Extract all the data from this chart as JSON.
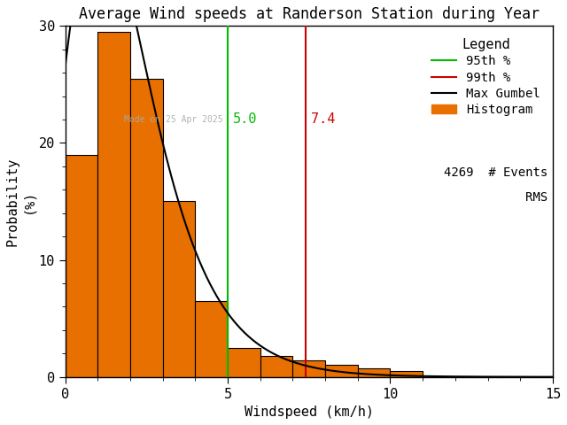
{
  "title": "Average Wind speeds at Randerson Station during Year",
  "xlabel": "Windspeed (km/h)",
  "ylabel": "Probability\n(%)",
  "xlim": [
    0,
    15
  ],
  "ylim": [
    0,
    30
  ],
  "xticks": [
    0,
    5,
    10,
    15
  ],
  "yticks": [
    0,
    10,
    20,
    30
  ],
  "bar_edges": [
    0,
    1,
    2,
    3,
    4,
    5,
    6,
    7,
    8,
    9,
    10,
    11,
    12,
    13,
    14,
    15
  ],
  "bar_heights": [
    19.0,
    29.5,
    25.5,
    15.0,
    6.5,
    2.5,
    1.8,
    1.4,
    1.0,
    0.7,
    0.5,
    0.0,
    0.0,
    0.0,
    0.0
  ],
  "bar_color": "#E87000",
  "bar_edgecolor": "#000000",
  "line95_x": 5.0,
  "line99_x": 7.4,
  "line95_color": "#00BB00",
  "line99_color": "#CC0000",
  "gumbel_color": "black",
  "histogram_legend_color": "#E87000",
  "n_events": 4269,
  "watermark_text": "Mode on 25 Apr 2025",
  "watermark_color": "#AAAAAA",
  "background_color": "white",
  "font_family": "monospace",
  "title_fontsize": 12,
  "axis_fontsize": 11,
  "legend_fontsize": 10,
  "tick_fontsize": 11,
  "gumbel_mu": 1.05,
  "gumbel_beta": 1.35,
  "gumbel_scale": 14.5
}
